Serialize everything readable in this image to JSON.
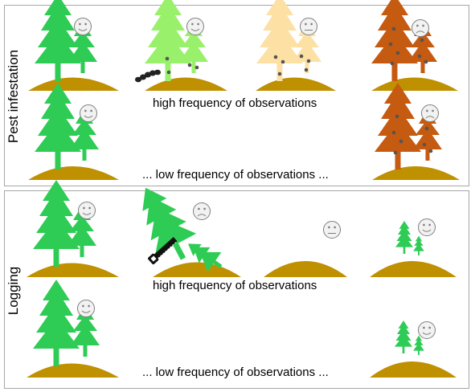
{
  "panels": {
    "pest": {
      "label": "Pest infestation",
      "high_caption": "high frequency of observations",
      "low_caption": "... low frequency of observations ..."
    },
    "logging": {
      "label": "Logging",
      "high_caption": "high frequency of observations",
      "low_caption": "... low frequency of observations ..."
    }
  },
  "colors": {
    "healthy_tree": "#2ecc55",
    "early_infested_tree": "#99f06a",
    "mid_infested_tree": "#fde0a4",
    "dead_tree": "#c55a11",
    "ground": "#bf9000",
    "spot": "#555555",
    "face": "#f2f2f2"
  },
  "icons": [
    "smiley-icon",
    "neutral-face-icon",
    "sad-face-icon",
    "caterpillar-icon",
    "saw-icon"
  ]
}
